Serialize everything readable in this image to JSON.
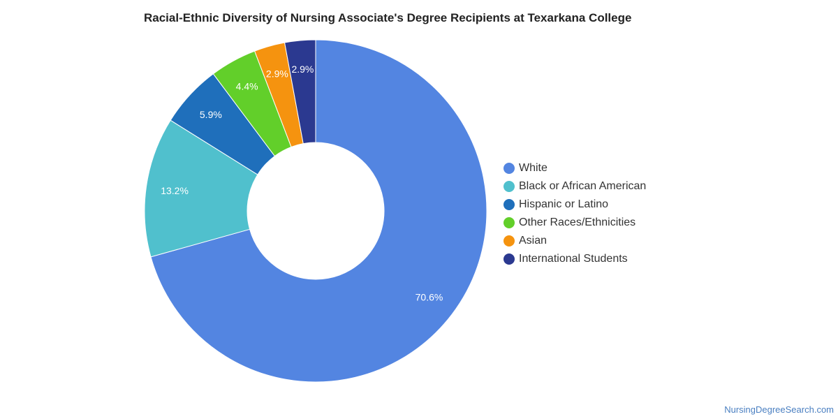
{
  "chart_data": {
    "type": "pie",
    "title": "Racial-Ethnic Diversity of Nursing Associate's Degree Recipients at Texarkana College",
    "categories": [
      "White",
      "Black or African American",
      "Hispanic or Latino",
      "Other Races/Ethnicities",
      "Asian",
      "International Students"
    ],
    "values": [
      70.6,
      13.2,
      5.9,
      4.4,
      2.9,
      2.9
    ],
    "labels": [
      "70.6%",
      "13.2%",
      "5.9%",
      "4.4%",
      "2.9%",
      "2.9%"
    ],
    "colors": [
      "#5385e1",
      "#50c0cd",
      "#1f6fbb",
      "#62cf2a",
      "#f5930f",
      "#2b3990"
    ],
    "donut": true,
    "legend_position": "right"
  },
  "legend": [
    {
      "label": "White",
      "color": "#5385e1"
    },
    {
      "label": "Black or African American",
      "color": "#50c0cd"
    },
    {
      "label": "Hispanic or Latino",
      "color": "#1f6fbb"
    },
    {
      "label": "Other Races/Ethnicities",
      "color": "#62cf2a"
    },
    {
      "label": "Asian",
      "color": "#f5930f"
    },
    {
      "label": "International Students",
      "color": "#2b3990"
    }
  ],
  "source": "NursingDegreeSearch.com"
}
